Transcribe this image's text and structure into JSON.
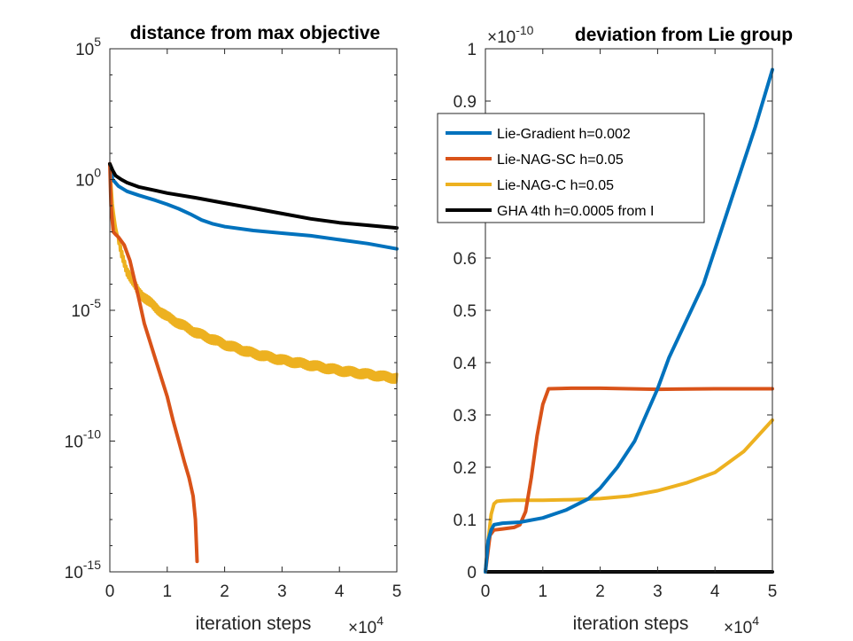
{
  "chart_data": [
    {
      "type": "line",
      "yscale": "log",
      "title": "distance from max objective",
      "xlabel": "iteration steps",
      "x_multiplier": "×10",
      "x_multiplier_exp": "4",
      "xlim": [
        0,
        5
      ],
      "x_ticks": [
        "0",
        "1",
        "2",
        "3",
        "4",
        "5"
      ],
      "ylim_log10": [
        -15,
        5
      ],
      "y_tick_base": "10",
      "y_tick_exps": [
        "-15",
        "-10",
        "-5",
        "0",
        "5"
      ],
      "series": [
        {
          "name": "Lie-Gradient h=0.002",
          "color": "#0072BD",
          "x": [
            0,
            0.05,
            0.15,
            0.3,
            0.5,
            0.8,
            1.0,
            1.2,
            1.4,
            1.6,
            1.8,
            2.0,
            2.5,
            3.0,
            3.5,
            4.0,
            4.5,
            5.0
          ],
          "y_log10": [
            0.55,
            0.0,
            -0.25,
            -0.45,
            -0.6,
            -0.8,
            -0.95,
            -1.12,
            -1.32,
            -1.55,
            -1.7,
            -1.8,
            -1.95,
            -2.05,
            -2.15,
            -2.3,
            -2.45,
            -2.65
          ]
        },
        {
          "name": "Lie-NAG-SC h=0.05",
          "color": "#D95319",
          "x": [
            0,
            0.02,
            0.06,
            0.1,
            0.15,
            0.25,
            0.35,
            0.5,
            0.6,
            0.8,
            1.0,
            1.1,
            1.2,
            1.3,
            1.38,
            1.45,
            1.49,
            1.51,
            1.52
          ],
          "y_log10": [
            0.6,
            -1.0,
            -2.0,
            -2.1,
            -2.2,
            -2.5,
            -3.1,
            -4.5,
            -5.5,
            -6.9,
            -8.3,
            -9.2,
            -10.0,
            -10.8,
            -11.4,
            -12.1,
            -13.0,
            -14.0,
            -14.6
          ]
        },
        {
          "name": "Lie-NAG-C h=0.05",
          "color": "#EDB120",
          "x": [
            0,
            0.05,
            0.1,
            0.2,
            0.3,
            0.5,
            0.8,
            1.0,
            1.5,
            2.0,
            2.5,
            3.0,
            3.5,
            4.0,
            4.5,
            5.0
          ],
          "y_log10": [
            0.6,
            -1.0,
            -1.8,
            -2.8,
            -3.5,
            -4.3,
            -4.9,
            -5.25,
            -5.85,
            -6.3,
            -6.65,
            -6.9,
            -7.1,
            -7.3,
            -7.45,
            -7.6
          ],
          "noise": 0.18
        },
        {
          "name": "GHA 4th h=0.0005 from I",
          "color": "#000000",
          "x": [
            0,
            0.05,
            0.1,
            0.2,
            0.3,
            0.5,
            0.8,
            1.0,
            1.5,
            2.0,
            2.5,
            3.0,
            3.5,
            4.0,
            4.5,
            5.0
          ],
          "y_log10": [
            0.6,
            0.35,
            0.15,
            0.0,
            -0.12,
            -0.28,
            -0.42,
            -0.52,
            -0.7,
            -0.9,
            -1.1,
            -1.3,
            -1.5,
            -1.65,
            -1.75,
            -1.85
          ]
        }
      ]
    },
    {
      "type": "line",
      "title": "deviation from Lie group",
      "y_multiplier": "×10",
      "y_multiplier_exp": "-10",
      "xlabel": "iteration steps",
      "x_multiplier": "×10",
      "x_multiplier_exp": "4",
      "xlim": [
        0,
        5
      ],
      "x_ticks": [
        "0",
        "1",
        "2",
        "3",
        "4",
        "5"
      ],
      "ylim": [
        0,
        1
      ],
      "y_ticks": [
        "0",
        "0.1",
        "0.2",
        "0.3",
        "0.4",
        "0.5",
        "0.6",
        "0.7",
        "0.8",
        "0.9",
        "1"
      ],
      "legend_position": "upper-left",
      "series": [
        {
          "name": "Lie-Gradient h=0.002",
          "color": "#0072BD",
          "x": [
            0,
            0.05,
            0.1,
            0.15,
            0.3,
            0.6,
            1.0,
            1.4,
            1.8,
            2.0,
            2.3,
            2.6,
            2.8,
            3.0,
            3.2,
            3.5,
            3.8,
            4.1,
            4.4,
            4.7,
            5.0
          ],
          "y": [
            0,
            0.06,
            0.08,
            0.09,
            0.093,
            0.095,
            0.103,
            0.118,
            0.14,
            0.16,
            0.2,
            0.25,
            0.3,
            0.35,
            0.41,
            0.48,
            0.55,
            0.65,
            0.75,
            0.85,
            0.96
          ]
        },
        {
          "name": "Lie-NAG-SC h=0.05",
          "color": "#D95319",
          "x": [
            0,
            0.08,
            0.15,
            0.3,
            0.5,
            0.6,
            0.7,
            0.8,
            0.9,
            1.0,
            1.1,
            1.5,
            2.0,
            3.0,
            4.0,
            5.0
          ],
          "y": [
            0,
            0.07,
            0.08,
            0.082,
            0.085,
            0.09,
            0.115,
            0.18,
            0.26,
            0.32,
            0.35,
            0.351,
            0.351,
            0.349,
            0.35,
            0.35
          ]
        },
        {
          "name": "Lie-NAG-C h=0.05",
          "color": "#EDB120",
          "x": [
            0,
            0.05,
            0.1,
            0.15,
            0.2,
            0.3,
            0.5,
            1.0,
            1.5,
            2.0,
            2.5,
            3.0,
            3.5,
            4.0,
            4.5,
            5.0
          ],
          "y": [
            0,
            0.06,
            0.11,
            0.13,
            0.135,
            0.136,
            0.137,
            0.137,
            0.138,
            0.14,
            0.145,
            0.155,
            0.17,
            0.19,
            0.23,
            0.29
          ]
        },
        {
          "name": "GHA 4th h=0.0005 from I",
          "color": "#000000",
          "x": [
            0,
            5
          ],
          "y": [
            0.0,
            0.0
          ]
        }
      ]
    }
  ]
}
